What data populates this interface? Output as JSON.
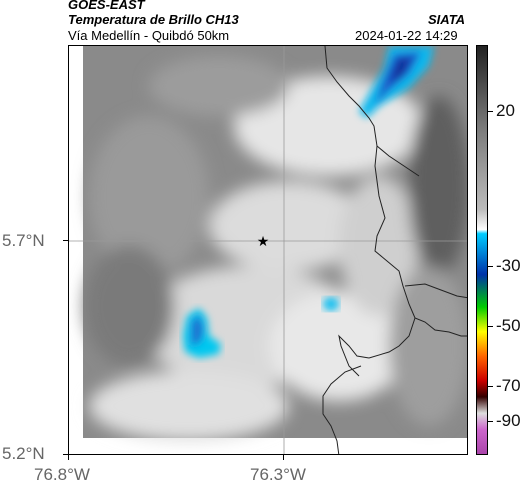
{
  "header": {
    "satellite": "GOES-EAST",
    "product": "Temperatura de Brillo CH13",
    "route": "Vía Medellín - Quibdó 50km",
    "org": "SIATA",
    "datetime": "2024-01-22 14:29"
  },
  "axes": {
    "lat_labels": [
      "5.7°N",
      "5.2°N"
    ],
    "lon_labels": [
      "76.8°W",
      "76.3°W"
    ]
  },
  "colorbar": {
    "labels": [
      "20",
      "-30",
      "-50",
      "-70",
      "-90"
    ],
    "colors": [
      "#222222",
      "#bbbbbb",
      "#00ccff",
      "#0033aa",
      "#00cc00",
      "#ffff00",
      "#ff6600",
      "#cc0000",
      "#330000",
      "#cc66cc"
    ]
  },
  "map": {
    "marker_icon": "star-icon"
  }
}
